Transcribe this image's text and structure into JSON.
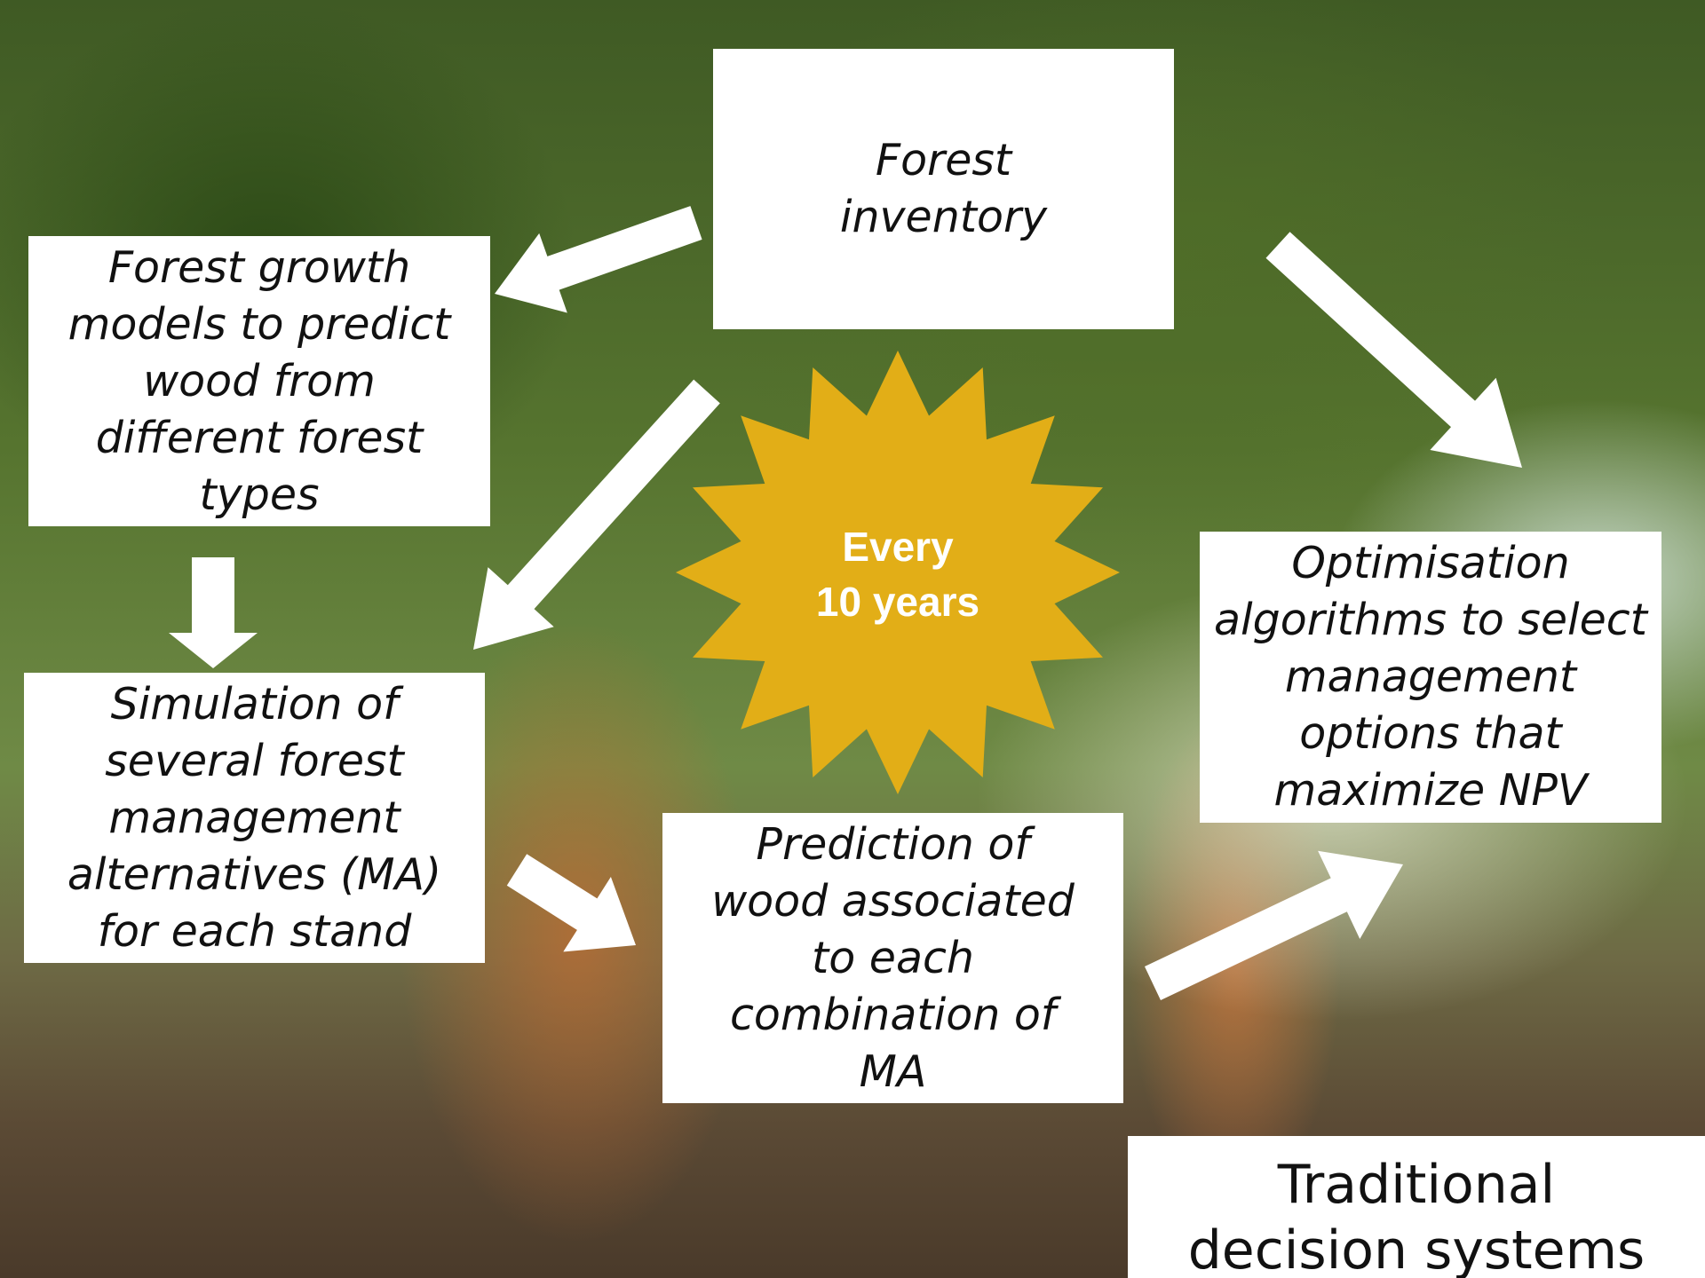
{
  "nodes": [
    {
      "lines": [
        "Forest",
        "inventory"
      ]
    },
    {
      "lines": [
        "Forest growth",
        "models to predict",
        "wood from",
        "different forest",
        "types"
      ]
    },
    {
      "lines": [
        "Simulation of",
        "several forest",
        "management",
        "alternatives (MA)",
        "for each stand"
      ]
    },
    {
      "lines": [
        "Prediction of",
        "wood associated",
        "to each",
        "combination of",
        "MA"
      ]
    },
    {
      "lines": [
        "Optimisation",
        "algorithms to select",
        "management",
        "options that",
        "maximize NPV"
      ]
    }
  ],
  "badge": {
    "lines": [
      "Every",
      "10 years"
    ]
  },
  "footer": {
    "lines": [
      "Traditional",
      "decision systems"
    ]
  }
}
